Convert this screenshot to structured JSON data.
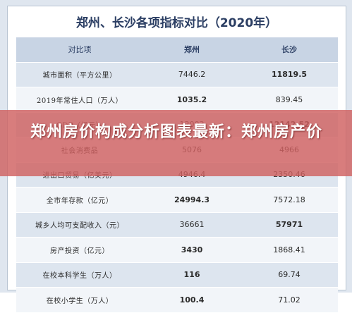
{
  "title": "郑州、长沙各项指标对比（2020年）",
  "table": {
    "headers": [
      "对比项",
      "郑州",
      "长沙"
    ],
    "rows": [
      {
        "label": "城市面积（平方公里）",
        "zz": "7446.2",
        "cs": "11819.5",
        "hi": "cs"
      },
      {
        "label": "2019年常住人口（万人）",
        "zz": "1035.2",
        "cs": "839.45",
        "hi": "zz"
      },
      {
        "label": "GDP（亿元）",
        "zz": "12003",
        "cs": "12142.52",
        "hi": "cs"
      },
      {
        "label": "社会消费品",
        "zz": "5076",
        "cs": "4966",
        "hi": ""
      },
      {
        "label": "进出口贸易（亿美元）",
        "zz": "4946.4",
        "cs": "2350.46",
        "hi": ""
      },
      {
        "label": "全市年存款（亿元）",
        "zz": "24994.3",
        "cs": "7572.18",
        "hi": "zz"
      },
      {
        "label": "城乡人均可支配收入（元）",
        "zz": "36661",
        "cs": "57971",
        "hi": "cs"
      },
      {
        "label": "房产投资（亿元）",
        "zz": "3430",
        "cs": "1868.41",
        "hi": "zz"
      },
      {
        "label": "在校本科学生（万人）",
        "zz": "116",
        "cs": "69.74",
        "hi": "zz"
      },
      {
        "label": "在校小学生（万人）",
        "zz": "100.4",
        "cs": "71.02",
        "hi": "zz"
      }
    ]
  },
  "headline": "郑州房价构成分析图表最新：郑州房产价"
}
